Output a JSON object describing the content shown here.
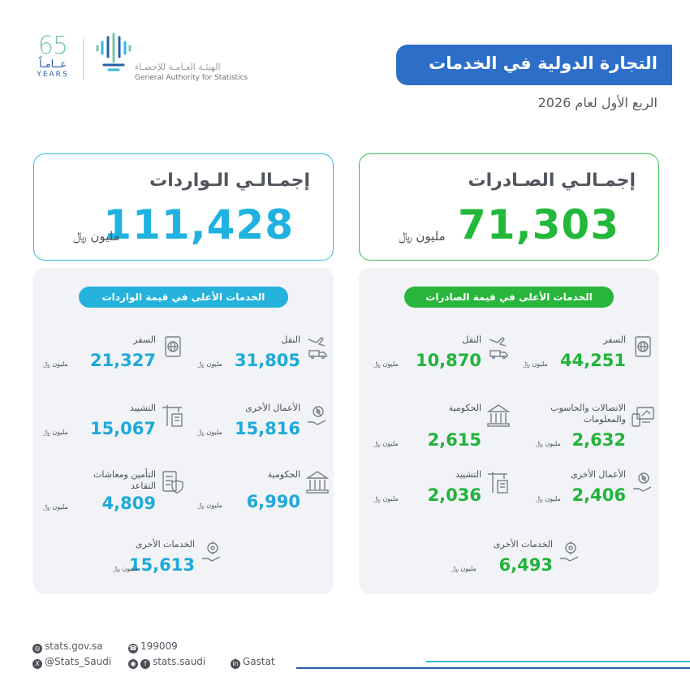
{
  "header": {
    "anniversary_number": "65",
    "anniversary_ar": "عــامـاً",
    "anniversary_en": "YEARS",
    "org_ar": "الهيئـة العـامـة للإحصـاء",
    "org_en": "General Authority for Statistics",
    "title": "التجارة الدولية في الخدمات",
    "subtitle": "الربع الأول لعام 2026"
  },
  "totals": {
    "exports": {
      "label": "إجمـالـي الصـادرات",
      "value": "71,303",
      "unit": "مليون ﷼"
    },
    "imports": {
      "label": "إجمـالـي الـواردات",
      "value": "111,428",
      "unit": "مليون ﷼"
    }
  },
  "exports_panel": {
    "heading": "الخدمات الأعلى في قيمة الصادرات",
    "items": [
      {
        "name": "السفر",
        "value": "44,251",
        "unit": "مليون ﷼",
        "icon": "passport-globe-icon"
      },
      {
        "name": "النقل",
        "value": "10,870",
        "unit": "مليون ﷼",
        "icon": "transport-icon"
      },
      {
        "name": "الاتصالات والحاسوب والمعلومات",
        "value": "2,632",
        "unit": "مليون ﷼",
        "icon": "telecom-computer-icon"
      },
      {
        "name": "الحكومية",
        "value": "2,615",
        "unit": "مليون ﷼",
        "icon": "government-building-icon"
      },
      {
        "name": "الأعمال الأخرى",
        "value": "2,406",
        "unit": "مليون ﷼",
        "icon": "business-gear-hand-icon"
      },
      {
        "name": "التشييد",
        "value": "2,036",
        "unit": "مليون ﷼",
        "icon": "construction-crane-icon"
      },
      {
        "name": "الخدمات الأخرى",
        "value": "6,493",
        "unit": "مليون ﷼",
        "icon": "other-services-icon"
      }
    ]
  },
  "imports_panel": {
    "heading": "الخدمات الأعلى في قيمة الواردات",
    "items": [
      {
        "name": "النقل",
        "value": "31,805",
        "unit": "مليون ﷼",
        "icon": "transport-icon"
      },
      {
        "name": "السفر",
        "value": "21,327",
        "unit": "مليون ﷼",
        "icon": "passport-globe-icon"
      },
      {
        "name": "الأعمال الأخرى",
        "value": "15,816",
        "unit": "مليون ﷼",
        "icon": "business-gear-hand-icon"
      },
      {
        "name": "التشييد",
        "value": "15,067",
        "unit": "مليون ﷼",
        "icon": "construction-crane-icon"
      },
      {
        "name": "الحكومية",
        "value": "6,990",
        "unit": "مليون ﷼",
        "icon": "government-building-icon"
      },
      {
        "name": "التأمين ومعاشات التقاعد",
        "value": "4,809",
        "unit": "مليون ﷼",
        "icon": "insurance-shield-icon"
      },
      {
        "name": "الخدمات الأخرى",
        "value": "15,613",
        "unit": "مليون ﷼",
        "icon": "other-services-icon"
      }
    ]
  },
  "footer": {
    "website": "stats.gov.sa",
    "phone": "199009",
    "x_handle": "@Stats_Saudi",
    "social": "stats.saudi",
    "linkedin": "Gastat"
  },
  "colors": {
    "brand_blue": "#2d6ec9",
    "export_green": "#22b83b",
    "import_cyan": "#1fb2e0",
    "panel_bg": "#f1f3f7"
  }
}
